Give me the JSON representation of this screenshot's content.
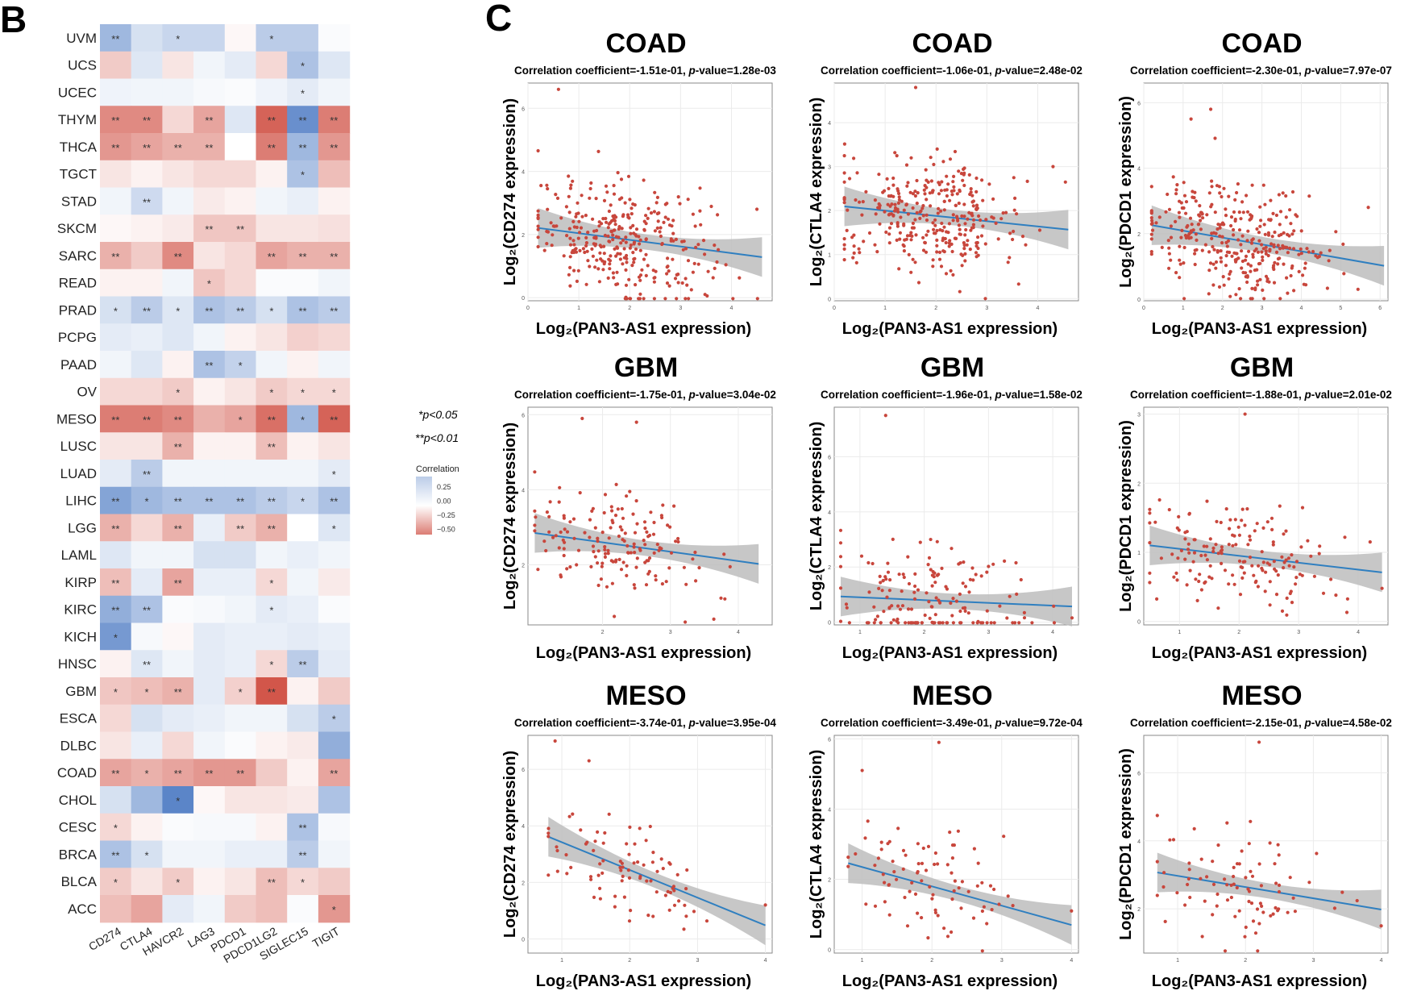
{
  "panel_labels": {
    "heatmap": "B",
    "scatter": "C"
  },
  "significance_legend": {
    "p05": "*p<0.05",
    "p01": "**p<0.01"
  },
  "colors": {
    "positive": "#5b85c8",
    "negative": "#d2564a",
    "point": "#c8463c",
    "fit_line": "#2f7fc0",
    "ci_band": "#bdbdbd"
  },
  "chart_data": [
    {
      "type": "heatmap",
      "xlabel": "",
      "ylabel": "",
      "columns": [
        "CD274",
        "CTLA4",
        "HAVCR2",
        "LAG3",
        "PDCD1",
        "PDCD1LG2",
        "SIGLEC15",
        "TIGIT"
      ],
      "rows": [
        "UVM",
        "UCS",
        "UCEC",
        "THYM",
        "THCA",
        "TGCT",
        "STAD",
        "SKCM",
        "SARC",
        "READ",
        "PRAD",
        "PCPG",
        "PAAD",
        "OV",
        "MESO",
        "LUSC",
        "LUAD",
        "LIHC",
        "LGG",
        "LAML",
        "KIRP",
        "KIRC",
        "KICH",
        "HNSC",
        "GBM",
        "ESCA",
        "DLBC",
        "COAD",
        "CHOL",
        "CESC",
        "BRCA",
        "BLCA",
        "ACC"
      ],
      "values": [
        [
          0.35,
          0.15,
          0.2,
          0.2,
          -0.03,
          0.25,
          0.25,
          0.02
        ],
        [
          -0.2,
          0.12,
          -0.1,
          0.05,
          0.1,
          -0.15,
          0.3,
          0.12
        ],
        [
          0.06,
          0.05,
          0.05,
          0.03,
          0.02,
          0.06,
          0.1,
          0.05
        ],
        [
          -0.45,
          -0.45,
          -0.15,
          -0.35,
          0.12,
          -0.6,
          0.55,
          -0.5
        ],
        [
          -0.4,
          -0.35,
          -0.3,
          -0.3,
          0.0,
          -0.5,
          0.35,
          -0.4
        ],
        [
          -0.1,
          -0.05,
          -0.1,
          -0.15,
          -0.15,
          -0.05,
          0.3,
          -0.25
        ],
        [
          0.05,
          0.18,
          0.05,
          -0.08,
          -0.05,
          0.05,
          0.08,
          -0.05
        ],
        [
          -0.03,
          -0.05,
          -0.08,
          -0.22,
          -0.22,
          -0.1,
          -0.1,
          -0.12
        ],
        [
          -0.3,
          -0.2,
          -0.45,
          -0.1,
          -0.15,
          -0.35,
          -0.3,
          -0.3
        ],
        [
          -0.05,
          -0.05,
          0.05,
          -0.22,
          -0.15,
          0.02,
          0.02,
          0.05
        ],
        [
          0.15,
          0.25,
          0.12,
          0.3,
          0.25,
          0.15,
          0.3,
          0.25
        ],
        [
          0.1,
          0.08,
          0.12,
          0.05,
          -0.05,
          -0.1,
          -0.18,
          -0.15
        ],
        [
          0.05,
          0.12,
          -0.05,
          0.3,
          0.22,
          0.05,
          -0.05,
          0.05
        ],
        [
          -0.15,
          -0.15,
          -0.2,
          -0.05,
          -0.1,
          -0.2,
          -0.15,
          -0.15
        ],
        [
          -0.5,
          -0.5,
          -0.45,
          -0.3,
          -0.35,
          -0.55,
          0.35,
          -0.6
        ],
        [
          -0.1,
          -0.1,
          -0.3,
          -0.05,
          -0.05,
          -0.25,
          -0.05,
          -0.1
        ],
        [
          0.1,
          0.25,
          0.05,
          0.05,
          0.05,
          0.05,
          0.05,
          0.1
        ],
        [
          0.45,
          0.35,
          0.3,
          0.3,
          0.3,
          0.25,
          0.2,
          0.3
        ],
        [
          -0.3,
          -0.15,
          -0.3,
          0.08,
          -0.2,
          -0.3,
          0.0,
          0.12
        ],
        [
          0.12,
          0.05,
          0.05,
          0.15,
          0.15,
          0.05,
          0.08,
          0.05
        ],
        [
          -0.25,
          0.1,
          -0.35,
          0.08,
          0.08,
          -0.15,
          0.05,
          -0.08
        ],
        [
          0.4,
          0.3,
          0.02,
          0.03,
          0.05,
          0.1,
          0.08,
          0.02
        ],
        [
          0.5,
          0.03,
          -0.03,
          0.1,
          0.08,
          0.08,
          0.1,
          0.08
        ],
        [
          -0.05,
          0.12,
          0.05,
          0.1,
          0.08,
          -0.15,
          0.25,
          0.1
        ],
        [
          -0.22,
          -0.25,
          -0.3,
          0.1,
          -0.18,
          -0.65,
          -0.05,
          -0.2
        ],
        [
          -0.15,
          0.15,
          0.1,
          0.08,
          0.05,
          0.05,
          0.15,
          0.25
        ],
        [
          -0.1,
          0.08,
          -0.15,
          0.05,
          0.02,
          -0.05,
          -0.08,
          0.4
        ],
        [
          -0.35,
          -0.3,
          -0.35,
          -0.4,
          -0.4,
          -0.2,
          -0.05,
          -0.35
        ],
        [
          0.15,
          0.35,
          0.6,
          -0.03,
          -0.1,
          -0.1,
          -0.08,
          0.3
        ],
        [
          -0.15,
          -0.05,
          0.02,
          0.03,
          0.03,
          -0.05,
          0.3,
          0.03
        ],
        [
          0.3,
          0.15,
          0.05,
          0.05,
          0.08,
          0.08,
          0.25,
          0.05
        ],
        [
          -0.2,
          -0.1,
          -0.2,
          -0.05,
          -0.1,
          -0.25,
          -0.15,
          -0.2
        ],
        [
          -0.25,
          -0.35,
          0.1,
          0.05,
          -0.2,
          -0.25,
          0.02,
          -0.4
        ]
      ],
      "significance": [
        [
          "**",
          "",
          "*",
          "",
          "",
          "*",
          "",
          ""
        ],
        [
          "",
          "",
          "",
          "",
          "",
          "",
          "*",
          ""
        ],
        [
          "",
          "",
          "",
          "",
          "",
          "",
          "*",
          ""
        ],
        [
          "**",
          "**",
          "",
          "**",
          "",
          "**",
          "**",
          "**"
        ],
        [
          "**",
          "**",
          "**",
          "**",
          "",
          "**",
          "**",
          "**"
        ],
        [
          "",
          "",
          "",
          "",
          "",
          "",
          "*",
          ""
        ],
        [
          "",
          "**",
          "",
          "",
          "",
          "",
          "",
          ""
        ],
        [
          "",
          "",
          "",
          "**",
          "**",
          "",
          "",
          ""
        ],
        [
          "**",
          "",
          "**",
          "",
          "",
          "**",
          "**",
          "**"
        ],
        [
          "",
          "",
          "",
          "*",
          "",
          "",
          "",
          ""
        ],
        [
          "*",
          "**",
          "*",
          "**",
          "**",
          "*",
          "**",
          "**"
        ],
        [
          "",
          "",
          "",
          "",
          "",
          "",
          "",
          ""
        ],
        [
          "",
          "",
          "",
          "**",
          "*",
          "",
          "",
          ""
        ],
        [
          "",
          "",
          "*",
          "",
          "",
          "*",
          "*",
          "*"
        ],
        [
          "**",
          "**",
          "**",
          "",
          "*",
          "**",
          "*",
          "**"
        ],
        [
          "",
          "",
          "**",
          "",
          "",
          "**",
          "",
          ""
        ],
        [
          "",
          "**",
          "",
          "",
          "",
          "",
          "",
          "*"
        ],
        [
          "**",
          "*",
          "**",
          "**",
          "**",
          "**",
          "*",
          "**"
        ],
        [
          "**",
          "",
          "**",
          "",
          "**",
          "**",
          "",
          "*"
        ],
        [
          "",
          "",
          "",
          "",
          "",
          "",
          "",
          ""
        ],
        [
          "**",
          "",
          "**",
          "",
          "",
          "*",
          "",
          ""
        ],
        [
          "**",
          "**",
          "",
          "",
          "",
          "*",
          "",
          ""
        ],
        [
          "*",
          "",
          "",
          "",
          "",
          "",
          "",
          ""
        ],
        [
          "",
          "**",
          "",
          "",
          "",
          "*",
          "**",
          ""
        ],
        [
          "*",
          "*",
          "**",
          "",
          "*",
          "**",
          "",
          ""
        ],
        [
          "",
          "",
          "",
          "",
          "",
          "",
          "",
          "*"
        ],
        [
          "",
          "",
          "",
          "",
          "",
          "",
          "",
          ""
        ],
        [
          "**",
          "*",
          "**",
          "**",
          "**",
          "",
          "",
          "**"
        ],
        [
          "",
          "",
          "*",
          "",
          "",
          "",
          "",
          ""
        ],
        [
          "*",
          "",
          "",
          "",
          "",
          "",
          "**",
          ""
        ],
        [
          "**",
          "*",
          "",
          "",
          "",
          "",
          "**",
          ""
        ],
        [
          "*",
          "",
          "*",
          "",
          "",
          "**",
          "*",
          ""
        ],
        [
          "",
          "",
          "",
          "",
          "",
          "",
          "",
          "*"
        ]
      ],
      "legend": {
        "title": "Correlation",
        "ticks": [
          "0.25",
          "0.00",
          "−0.25",
          "−0.50"
        ],
        "range": [
          -0.5,
          0.25
        ]
      }
    },
    {
      "type": "scatter",
      "title": "COAD",
      "subtitle": {
        "prefix": "Correlation coefficient=-1.51e-01, ",
        "italic": "p",
        "suffix": "-value=1.28e-03"
      },
      "xlabel": "Log₂(PAN3-AS1 expression)",
      "ylabel": "Log₂(CD274 expression)",
      "xlim": [
        0,
        4.8
      ],
      "ylim": [
        -0.1,
        6.8
      ],
      "xticks": [
        0,
        1,
        2,
        3,
        4
      ],
      "yticks": [
        0,
        2,
        4,
        6
      ],
      "fit": {
        "intercept": 2.25,
        "slope": -0.21,
        "x_range": [
          0.2,
          4.6
        ]
      },
      "n": 330,
      "outliers": [
        [
          0.6,
          6.6
        ],
        [
          4.5,
          2.8
        ]
      ]
    },
    {
      "type": "scatter",
      "title": "COAD",
      "subtitle": {
        "prefix": "Correlation coefficient=-1.06e-01, ",
        "italic": "p",
        "suffix": "-value=2.48e-02"
      },
      "xlabel": "Log₂(PAN3-AS1 expression)",
      "ylabel": "Log₂(CTLA4 expression)",
      "xlim": [
        0,
        4.8
      ],
      "ylim": [
        -0.05,
        4.9
      ],
      "xticks": [
        0,
        1,
        2,
        3,
        4
      ],
      "yticks": [
        0,
        1,
        2,
        3,
        4
      ],
      "fit": {
        "intercept": 2.12,
        "slope": -0.12,
        "x_range": [
          0.2,
          4.6
        ]
      },
      "n": 330,
      "outliers": [
        [
          1.6,
          4.8
        ],
        [
          4.3,
          3.0
        ]
      ]
    },
    {
      "type": "scatter",
      "title": "COAD",
      "subtitle": {
        "prefix": "Correlation coefficient=-2.30e-01, ",
        "italic": "p",
        "suffix": "-value=7.97e-07"
      },
      "xlabel": "Log₂(PAN3-AS1 expression)",
      "ylabel": "Log₂(PDCD1 expression)",
      "xlim": [
        0,
        6.2
      ],
      "ylim": [
        -0.05,
        6.6
      ],
      "xticks": [
        0,
        1,
        2,
        3,
        4,
        5,
        6
      ],
      "yticks": [
        0,
        2,
        4,
        6
      ],
      "fit": {
        "intercept": 2.3,
        "slope": -0.21,
        "x_range": [
          0.2,
          6.1
        ]
      },
      "n": 330,
      "outliers": [
        [
          1.2,
          5.5
        ],
        [
          1.7,
          5.8
        ],
        [
          5.7,
          2.8
        ]
      ]
    },
    {
      "type": "scatter",
      "title": "GBM",
      "subtitle": {
        "prefix": "Correlation coefficient=-1.75e-01, ",
        "italic": "p",
        "suffix": "-value=3.04e-02"
      },
      "xlabel": "Log₂(PAN3-AS1 expression)",
      "ylabel": "Log₂(CD274 expression)",
      "xlim": [
        0.9,
        4.5
      ],
      "ylim": [
        0.4,
        6.2
      ],
      "xticks": [
        2,
        3,
        4
      ],
      "yticks": [
        2,
        4,
        6
      ],
      "fit": {
        "intercept": 3.1,
        "slope": -0.25,
        "x_range": [
          1.0,
          4.3
        ]
      },
      "n": 160,
      "outliers": [
        [
          1.7,
          5.9
        ],
        [
          2.5,
          5.8
        ]
      ]
    },
    {
      "type": "scatter",
      "title": "GBM",
      "subtitle": {
        "prefix": "Correlation coefficient=-1.96e-01, ",
        "italic": "p",
        "suffix": "-value=1.58e-02"
      },
      "xlabel": "Log₂(PAN3-AS1 expression)",
      "ylabel": "Log₂(CTLA4 expression)",
      "xlim": [
        0.6,
        4.4
      ],
      "ylim": [
        -0.1,
        7.8
      ],
      "xticks": [
        1,
        2,
        3,
        4
      ],
      "yticks": [
        0,
        2,
        4,
        6
      ],
      "fit": {
        "intercept": 1.0,
        "slope": -0.1,
        "x_range": [
          0.7,
          4.3
        ]
      },
      "n": 160,
      "outliers": [
        [
          1.4,
          7.5
        ],
        [
          2.1,
          3.0
        ]
      ]
    },
    {
      "type": "scatter",
      "title": "GBM",
      "subtitle": {
        "prefix": "Correlation coefficient=-1.88e-01, ",
        "italic": "p",
        "suffix": "-value=2.01e-02"
      },
      "xlabel": "Log₂(PAN3-AS1 expression)",
      "ylabel": "Log₂(PDCD1 expression)",
      "xlim": [
        0.4,
        4.5
      ],
      "ylim": [
        -0.05,
        3.1
      ],
      "xticks": [
        1,
        2,
        3,
        4
      ],
      "yticks": [
        0,
        1,
        2,
        3
      ],
      "fit": {
        "intercept": 1.15,
        "slope": -0.1,
        "x_range": [
          0.5,
          4.4
        ]
      },
      "n": 160,
      "outliers": [
        [
          2.1,
          3.0
        ],
        [
          4.2,
          1.15
        ]
      ]
    },
    {
      "type": "scatter",
      "title": "MESO",
      "subtitle": {
        "prefix": "Correlation coefficient=-3.74e-01, ",
        "italic": "p",
        "suffix": "-value=3.95e-04"
      },
      "xlabel": "Log₂(PAN3-AS1 expression)",
      "ylabel": "Log₂(CD274 expression)",
      "xlim": [
        0.5,
        4.1
      ],
      "ylim": [
        -0.5,
        7.2
      ],
      "xticks": [
        1,
        2,
        3,
        4
      ],
      "yticks": [
        0,
        2,
        4,
        6
      ],
      "fit": {
        "intercept": 4.4,
        "slope": -0.98,
        "x_range": [
          0.8,
          4.0
        ]
      },
      "n": 85,
      "outliers": [
        [
          0.9,
          7.0
        ],
        [
          1.4,
          6.3
        ],
        [
          4.0,
          1.2
        ]
      ]
    },
    {
      "type": "scatter",
      "title": "MESO",
      "subtitle": {
        "prefix": "Correlation coefficient=-3.49e-01, ",
        "italic": "p",
        "suffix": "-value=9.72e-04"
      },
      "xlabel": "Log₂(PAN3-AS1 expression)",
      "ylabel": "Log₂(CTLA4 expression)",
      "xlim": [
        0.6,
        4.1
      ],
      "ylim": [
        -0.1,
        6.1
      ],
      "xticks": [
        1,
        2,
        3,
        4
      ],
      "yticks": [
        0,
        2,
        4,
        6
      ],
      "fit": {
        "intercept": 2.9,
        "slope": -0.55,
        "x_range": [
          0.8,
          4.0
        ]
      },
      "n": 85,
      "outliers": [
        [
          2.1,
          5.9
        ],
        [
          1.0,
          5.1
        ],
        [
          4.0,
          1.1
        ]
      ]
    },
    {
      "type": "scatter",
      "title": "MESO",
      "subtitle": {
        "prefix": "Correlation coefficient=-2.15e-01, ",
        "italic": "p",
        "suffix": "-value=4.58e-02"
      },
      "xlabel": "Log₂(PAN3-AS1 expression)",
      "ylabel": "Log₂(PDCD1 expression)",
      "xlim": [
        0.5,
        4.1
      ],
      "ylim": [
        0.7,
        7.1
      ],
      "xticks": [
        1,
        2,
        3,
        4
      ],
      "yticks": [
        2,
        4,
        6
      ],
      "fit": {
        "intercept": 3.3,
        "slope": -0.33,
        "x_range": [
          0.7,
          4.0
        ]
      },
      "n": 85,
      "outliers": [
        [
          2.2,
          6.9
        ],
        [
          4.0,
          1.5
        ]
      ]
    }
  ]
}
